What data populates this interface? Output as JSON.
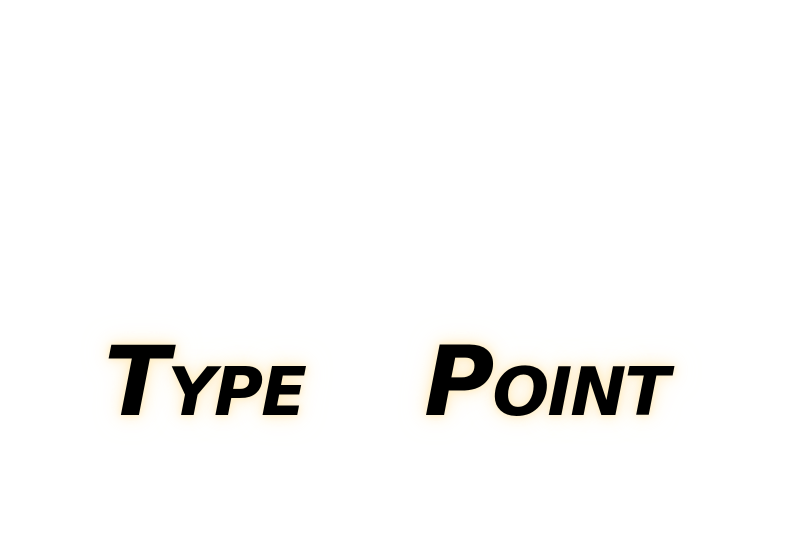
{
  "words": {
    "first": "Type",
    "second": "Point"
  },
  "colors": {
    "background": "#ffffff",
    "text": "#000000",
    "glow": "#ffecbe"
  }
}
